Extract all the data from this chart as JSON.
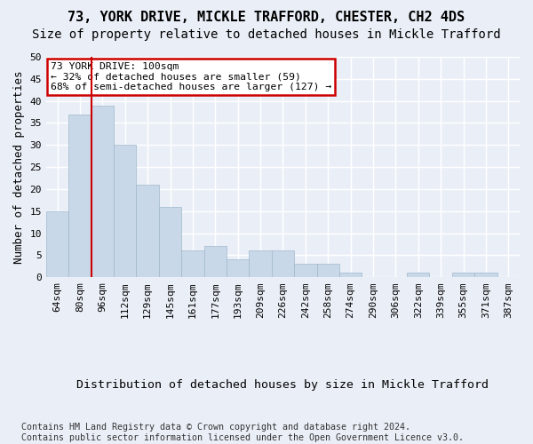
{
  "title1": "73, YORK DRIVE, MICKLE TRAFFORD, CHESTER, CH2 4DS",
  "title2": "Size of property relative to detached houses in Mickle Trafford",
  "xlabel": "Distribution of detached houses by size in Mickle Trafford",
  "ylabel": "Number of detached properties",
  "bin_labels": [
    "64sqm",
    "80sqm",
    "96sqm",
    "112sqm",
    "129sqm",
    "145sqm",
    "161sqm",
    "177sqm",
    "193sqm",
    "209sqm",
    "226sqm",
    "242sqm",
    "258sqm",
    "274sqm",
    "290sqm",
    "306sqm",
    "322sqm",
    "339sqm",
    "355sqm",
    "371sqm",
    "387sqm"
  ],
  "bar_values": [
    15,
    37,
    39,
    30,
    21,
    16,
    6,
    7,
    4,
    6,
    6,
    3,
    3,
    1,
    0,
    0,
    1,
    0,
    1,
    1,
    0
  ],
  "bar_color": "#c8d8e8",
  "bar_edge_color": "#a0b8cc",
  "vline_bin_index": 2,
  "vline_color": "#cc0000",
  "annotation_text": "73 YORK DRIVE: 100sqm\n← 32% of detached houses are smaller (59)\n68% of semi-detached houses are larger (127) →",
  "annotation_box_color": "#ffffff",
  "annotation_box_edge": "#cc0000",
  "ylim": [
    0,
    50
  ],
  "yticks": [
    0,
    5,
    10,
    15,
    20,
    25,
    30,
    35,
    40,
    45,
    50
  ],
  "footer": "Contains HM Land Registry data © Crown copyright and database right 2024.\nContains public sector information licensed under the Open Government Licence v3.0.",
  "bg_color": "#eaeff7",
  "plot_bg_color": "#eaeff7",
  "grid_color": "#ffffff",
  "title1_fontsize": 11,
  "title2_fontsize": 10,
  "xlabel_fontsize": 9.5,
  "ylabel_fontsize": 9,
  "tick_fontsize": 8,
  "footer_fontsize": 7.2
}
